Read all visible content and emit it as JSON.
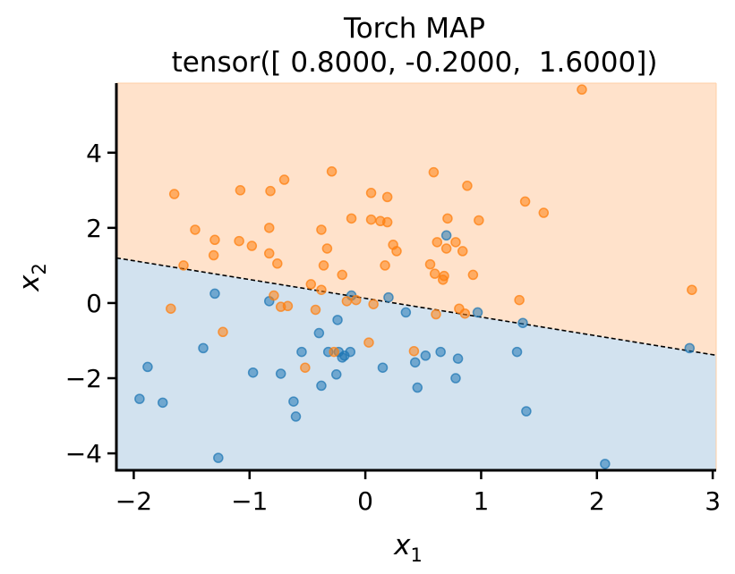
{
  "chart_data": {
    "type": "scatter",
    "title": "Torch MAP",
    "subtitle": "tensor([ 0.8000, -0.2000,  1.6000])",
    "xlabel": {
      "base": "x",
      "sub": "1"
    },
    "ylabel": {
      "base": "x",
      "sub": "2"
    },
    "xlim": [
      -2.15,
      3.03
    ],
    "ylim": [
      -4.45,
      5.85
    ],
    "xticks": [
      -2,
      -1,
      0,
      1,
      2,
      3
    ],
    "yticks": [
      -4,
      -2,
      0,
      2,
      4
    ],
    "xtick_labels": [
      "−2",
      "−1",
      "0",
      "1",
      "2",
      "3"
    ],
    "ytick_labels": [
      "−4",
      "−2",
      "0",
      "2",
      "4"
    ],
    "grid": false,
    "colors": {
      "class0": "#1f77b4",
      "class1": "#ff7f0e",
      "region0": "#d2e2ef",
      "region1": "#ffe2cb",
      "boundary": "#000000"
    },
    "decision_boundary": {
      "weights": [
        0.8,
        -0.2,
        1.6
      ],
      "style": "dashed"
    },
    "series": [
      {
        "class": 0,
        "points": [
          [
            -1.95,
            -2.55
          ],
          [
            -1.88,
            -1.7
          ],
          [
            -1.75,
            -2.65
          ],
          [
            -1.4,
            -1.2
          ],
          [
            -1.3,
            0.25
          ],
          [
            -1.27,
            -4.12
          ],
          [
            -0.97,
            -1.85
          ],
          [
            -0.83,
            0.05
          ],
          [
            -0.73,
            -1.88
          ],
          [
            -0.62,
            -2.62
          ],
          [
            -0.6,
            -3.02
          ],
          [
            -0.55,
            -1.3
          ],
          [
            -0.4,
            -0.8
          ],
          [
            -0.38,
            -2.2
          ],
          [
            -0.32,
            -1.3
          ],
          [
            -0.25,
            -1.9
          ],
          [
            -0.24,
            -0.45
          ],
          [
            -0.23,
            -1.3
          ],
          [
            -0.2,
            -1.45
          ],
          [
            -0.18,
            -1.4
          ],
          [
            -0.13,
            -1.3
          ],
          [
            -0.12,
            0.2
          ],
          [
            0.15,
            -1.72
          ],
          [
            0.2,
            0.15
          ],
          [
            0.35,
            -0.25
          ],
          [
            0.43,
            -1.58
          ],
          [
            0.45,
            -2.25
          ],
          [
            0.52,
            -1.4
          ],
          [
            0.65,
            -1.3
          ],
          [
            0.7,
            1.8
          ],
          [
            0.78,
            -2.0
          ],
          [
            0.8,
            -1.48
          ],
          [
            0.97,
            -0.25
          ],
          [
            1.31,
            -1.3
          ],
          [
            1.36,
            -0.53
          ],
          [
            1.39,
            -2.88
          ],
          [
            2.07,
            -4.28
          ],
          [
            2.8,
            -1.2
          ]
        ]
      },
      {
        "class": 1,
        "points": [
          [
            -1.68,
            -0.15
          ],
          [
            -1.65,
            2.9
          ],
          [
            -1.57,
            1.0
          ],
          [
            -1.47,
            1.95
          ],
          [
            -1.31,
            1.27
          ],
          [
            -1.3,
            1.68
          ],
          [
            -1.23,
            -0.77
          ],
          [
            -1.09,
            1.65
          ],
          [
            -1.08,
            3.0
          ],
          [
            -0.98,
            1.52
          ],
          [
            -0.83,
            1.32
          ],
          [
            -0.83,
            2.0
          ],
          [
            -0.82,
            2.98
          ],
          [
            -0.79,
            0.2
          ],
          [
            -0.76,
            1.05
          ],
          [
            -0.73,
            -0.1
          ],
          [
            -0.7,
            3.28
          ],
          [
            -0.67,
            -0.08
          ],
          [
            -0.52,
            -1.72
          ],
          [
            -0.47,
            0.5
          ],
          [
            -0.43,
            -0.18
          ],
          [
            -0.38,
            1.95
          ],
          [
            -0.38,
            0.35
          ],
          [
            -0.36,
            1.0
          ],
          [
            -0.33,
            1.45
          ],
          [
            -0.29,
            3.5
          ],
          [
            -0.27,
            -1.3
          ],
          [
            -0.2,
            0.75
          ],
          [
            -0.16,
            0.05
          ],
          [
            -0.12,
            2.25
          ],
          [
            -0.08,
            0.08
          ],
          [
            0.03,
            -1.05
          ],
          [
            0.05,
            2.22
          ],
          [
            0.05,
            2.93
          ],
          [
            0.07,
            -0.03
          ],
          [
            0.13,
            2.18
          ],
          [
            0.17,
            1.0
          ],
          [
            0.19,
            2.15
          ],
          [
            0.19,
            2.82
          ],
          [
            0.24,
            1.55
          ],
          [
            0.27,
            1.38
          ],
          [
            0.42,
            -1.28
          ],
          [
            0.56,
            1.03
          ],
          [
            0.59,
            3.48
          ],
          [
            0.6,
            0.78
          ],
          [
            0.61,
            -0.3
          ],
          [
            0.62,
            1.62
          ],
          [
            0.67,
            0.62
          ],
          [
            0.68,
            0.72
          ],
          [
            0.7,
            1.45
          ],
          [
            0.71,
            2.25
          ],
          [
            0.78,
            1.62
          ],
          [
            0.81,
            -0.15
          ],
          [
            0.84,
            1.38
          ],
          [
            0.86,
            -0.28
          ],
          [
            0.88,
            3.12
          ],
          [
            0.93,
            0.75
          ],
          [
            0.98,
            2.2
          ],
          [
            1.33,
            0.08
          ],
          [
            1.38,
            2.7
          ],
          [
            1.54,
            2.4
          ],
          [
            1.87,
            5.68
          ],
          [
            2.82,
            0.35
          ]
        ]
      }
    ]
  }
}
